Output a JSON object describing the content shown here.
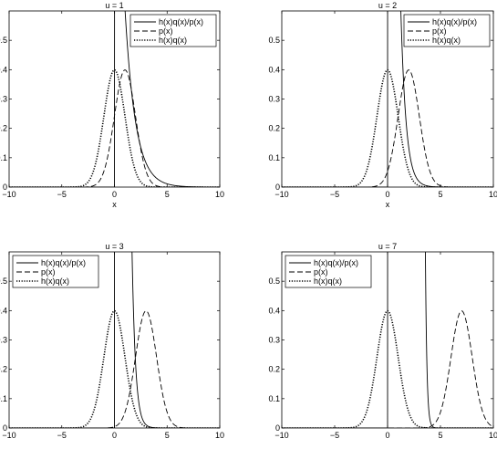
{
  "chart_data": [
    {
      "type": "line",
      "title": "u = 1",
      "u": 1,
      "xlabel": "x",
      "xlim": [
        -10,
        10
      ],
      "ylim": [
        0,
        0.6
      ],
      "xticks": [
        -10,
        -5,
        0,
        5,
        10
      ],
      "yticks": [
        0,
        0.1,
        0.2,
        0.3,
        0.4,
        0.5
      ],
      "legend_position": "top-right",
      "series": [
        {
          "name": "h(x)q(x)/p(x)",
          "style": "solid",
          "formula": "exp(u*u/2 - u*x) * 1[x>0]",
          "peak_x": 0,
          "peak_y": 0.4
        },
        {
          "name": "p(x)",
          "style": "dashed",
          "formula": "N(x; u, 1)",
          "peak_x": 1,
          "peak_y": 0.4
        },
        {
          "name": "h(x)q(x)",
          "style": "dotted",
          "formula": "N(x; 0, 1)",
          "peak_x": 0,
          "peak_y": 0.4
        }
      ]
    },
    {
      "type": "line",
      "title": "u = 2",
      "u": 2,
      "xlabel": "x",
      "xlim": [
        -10,
        10
      ],
      "ylim": [
        0,
        0.6
      ],
      "xticks": [
        -10,
        -5,
        0,
        5,
        10
      ],
      "yticks": [
        0,
        0.1,
        0.2,
        0.3,
        0.4,
        0.5
      ],
      "legend_position": "top-right",
      "series": [
        {
          "name": "h(x)q(x)/p(x)",
          "style": "solid",
          "formula": "exp(u*u/2 - u*x) * 1[x>0]",
          "peak_x": 0,
          "peak_y": 0.4
        },
        {
          "name": "p(x)",
          "style": "dashed",
          "formula": "N(x; u, 1)",
          "peak_x": 2,
          "peak_y": 0.4
        },
        {
          "name": "h(x)q(x)",
          "style": "dotted",
          "formula": "N(x; 0, 1)",
          "peak_x": 0,
          "peak_y": 0.4
        }
      ]
    },
    {
      "type": "line",
      "title": "u = 3",
      "u": 3,
      "xlabel": "",
      "xlim": [
        -10,
        10
      ],
      "ylim": [
        0,
        0.6
      ],
      "xticks": [
        -10,
        -5,
        0,
        5,
        10
      ],
      "yticks": [
        0,
        0.1,
        0.2,
        0.3,
        0.4,
        0.5
      ],
      "legend_position": "top-left",
      "series": [
        {
          "name": "h(x)q(x)/p(x)",
          "style": "solid",
          "formula": "exp(u*u/2 - u*x) * 1[x>0]",
          "peak_x": 0,
          "peak_y": 0.4
        },
        {
          "name": "p(x)",
          "style": "dashed",
          "formula": "N(x; u, 1)",
          "peak_x": 3,
          "peak_y": 0.4
        },
        {
          "name": "h(x)q(x)",
          "style": "dotted",
          "formula": "N(x; 0, 1)",
          "peak_x": 0,
          "peak_y": 0.4
        }
      ]
    },
    {
      "type": "line",
      "title": "u = 7",
      "u": 7,
      "xlabel": "",
      "xlim": [
        -10,
        10
      ],
      "ylim": [
        0,
        0.6
      ],
      "xticks": [
        -10,
        -5,
        0,
        5,
        10
      ],
      "yticks": [
        0,
        0.1,
        0.2,
        0.3,
        0.4,
        0.5
      ],
      "legend_position": "top-left",
      "series": [
        {
          "name": "h(x)q(x)/p(x)",
          "style": "solid",
          "formula": "exp(u*u/2 - u*x) * 1[x>0]",
          "peak_x": 0,
          "peak_y": 0.4
        },
        {
          "name": "p(x)",
          "style": "dashed",
          "formula": "N(x; u, 1)",
          "peak_x": 7,
          "peak_y": 0.4
        },
        {
          "name": "h(x)q(x)",
          "style": "dotted",
          "formula": "N(x; 0, 1)",
          "peak_x": 0,
          "peak_y": 0.4
        }
      ]
    }
  ]
}
